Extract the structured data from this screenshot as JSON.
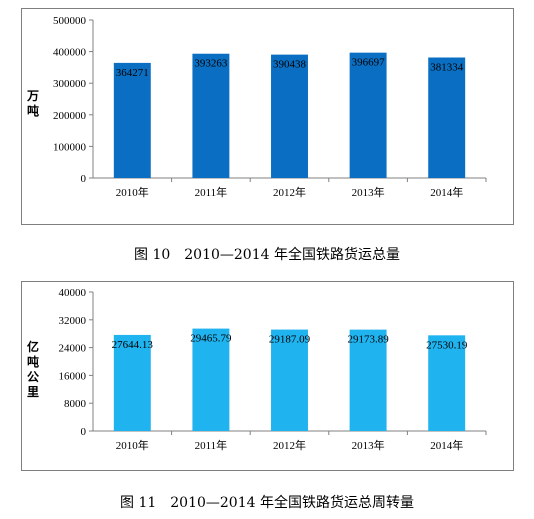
{
  "charts": [
    {
      "caption": "图 10　2010—2014 年全国铁路货运总量",
      "ylabel_chars": [
        "万",
        "吨"
      ],
      "bar_color": "#0a6fc2",
      "chart_data": {
        "type": "bar",
        "categories": [
          "2010年",
          "2011年",
          "2012年",
          "2013年",
          "2014年"
        ],
        "values": [
          364271,
          393263,
          390438,
          396697,
          381334
        ],
        "value_labels": [
          "364271",
          "393263",
          "390438",
          "396697",
          "381334"
        ],
        "title": "",
        "xlabel": "",
        "ylabel": "万吨",
        "ylim": [
          0,
          500000
        ],
        "yticks": [
          0,
          100000,
          200000,
          300000,
          400000,
          500000
        ],
        "grid": false,
        "legend": "none"
      }
    },
    {
      "caption": "图 11　2010—2014 年全国铁路货运总周转量",
      "ylabel_chars": [
        "亿",
        "吨",
        "公",
        "里"
      ],
      "bar_color": "#1fb3ef",
      "chart_data": {
        "type": "bar",
        "categories": [
          "2010年",
          "2011年",
          "2012年",
          "2013年",
          "2014年"
        ],
        "values": [
          27644.13,
          29465.79,
          29187.09,
          29173.89,
          27530.19
        ],
        "value_labels": [
          "27644.13",
          "29465.79",
          "29187.09",
          "29173.89",
          "27530.19"
        ],
        "title": "",
        "xlabel": "",
        "ylabel": "亿吨公里",
        "ylim": [
          0,
          40000
        ],
        "yticks": [
          0,
          8000,
          16000,
          24000,
          32000,
          40000
        ],
        "grid": false,
        "legend": "none"
      }
    }
  ]
}
